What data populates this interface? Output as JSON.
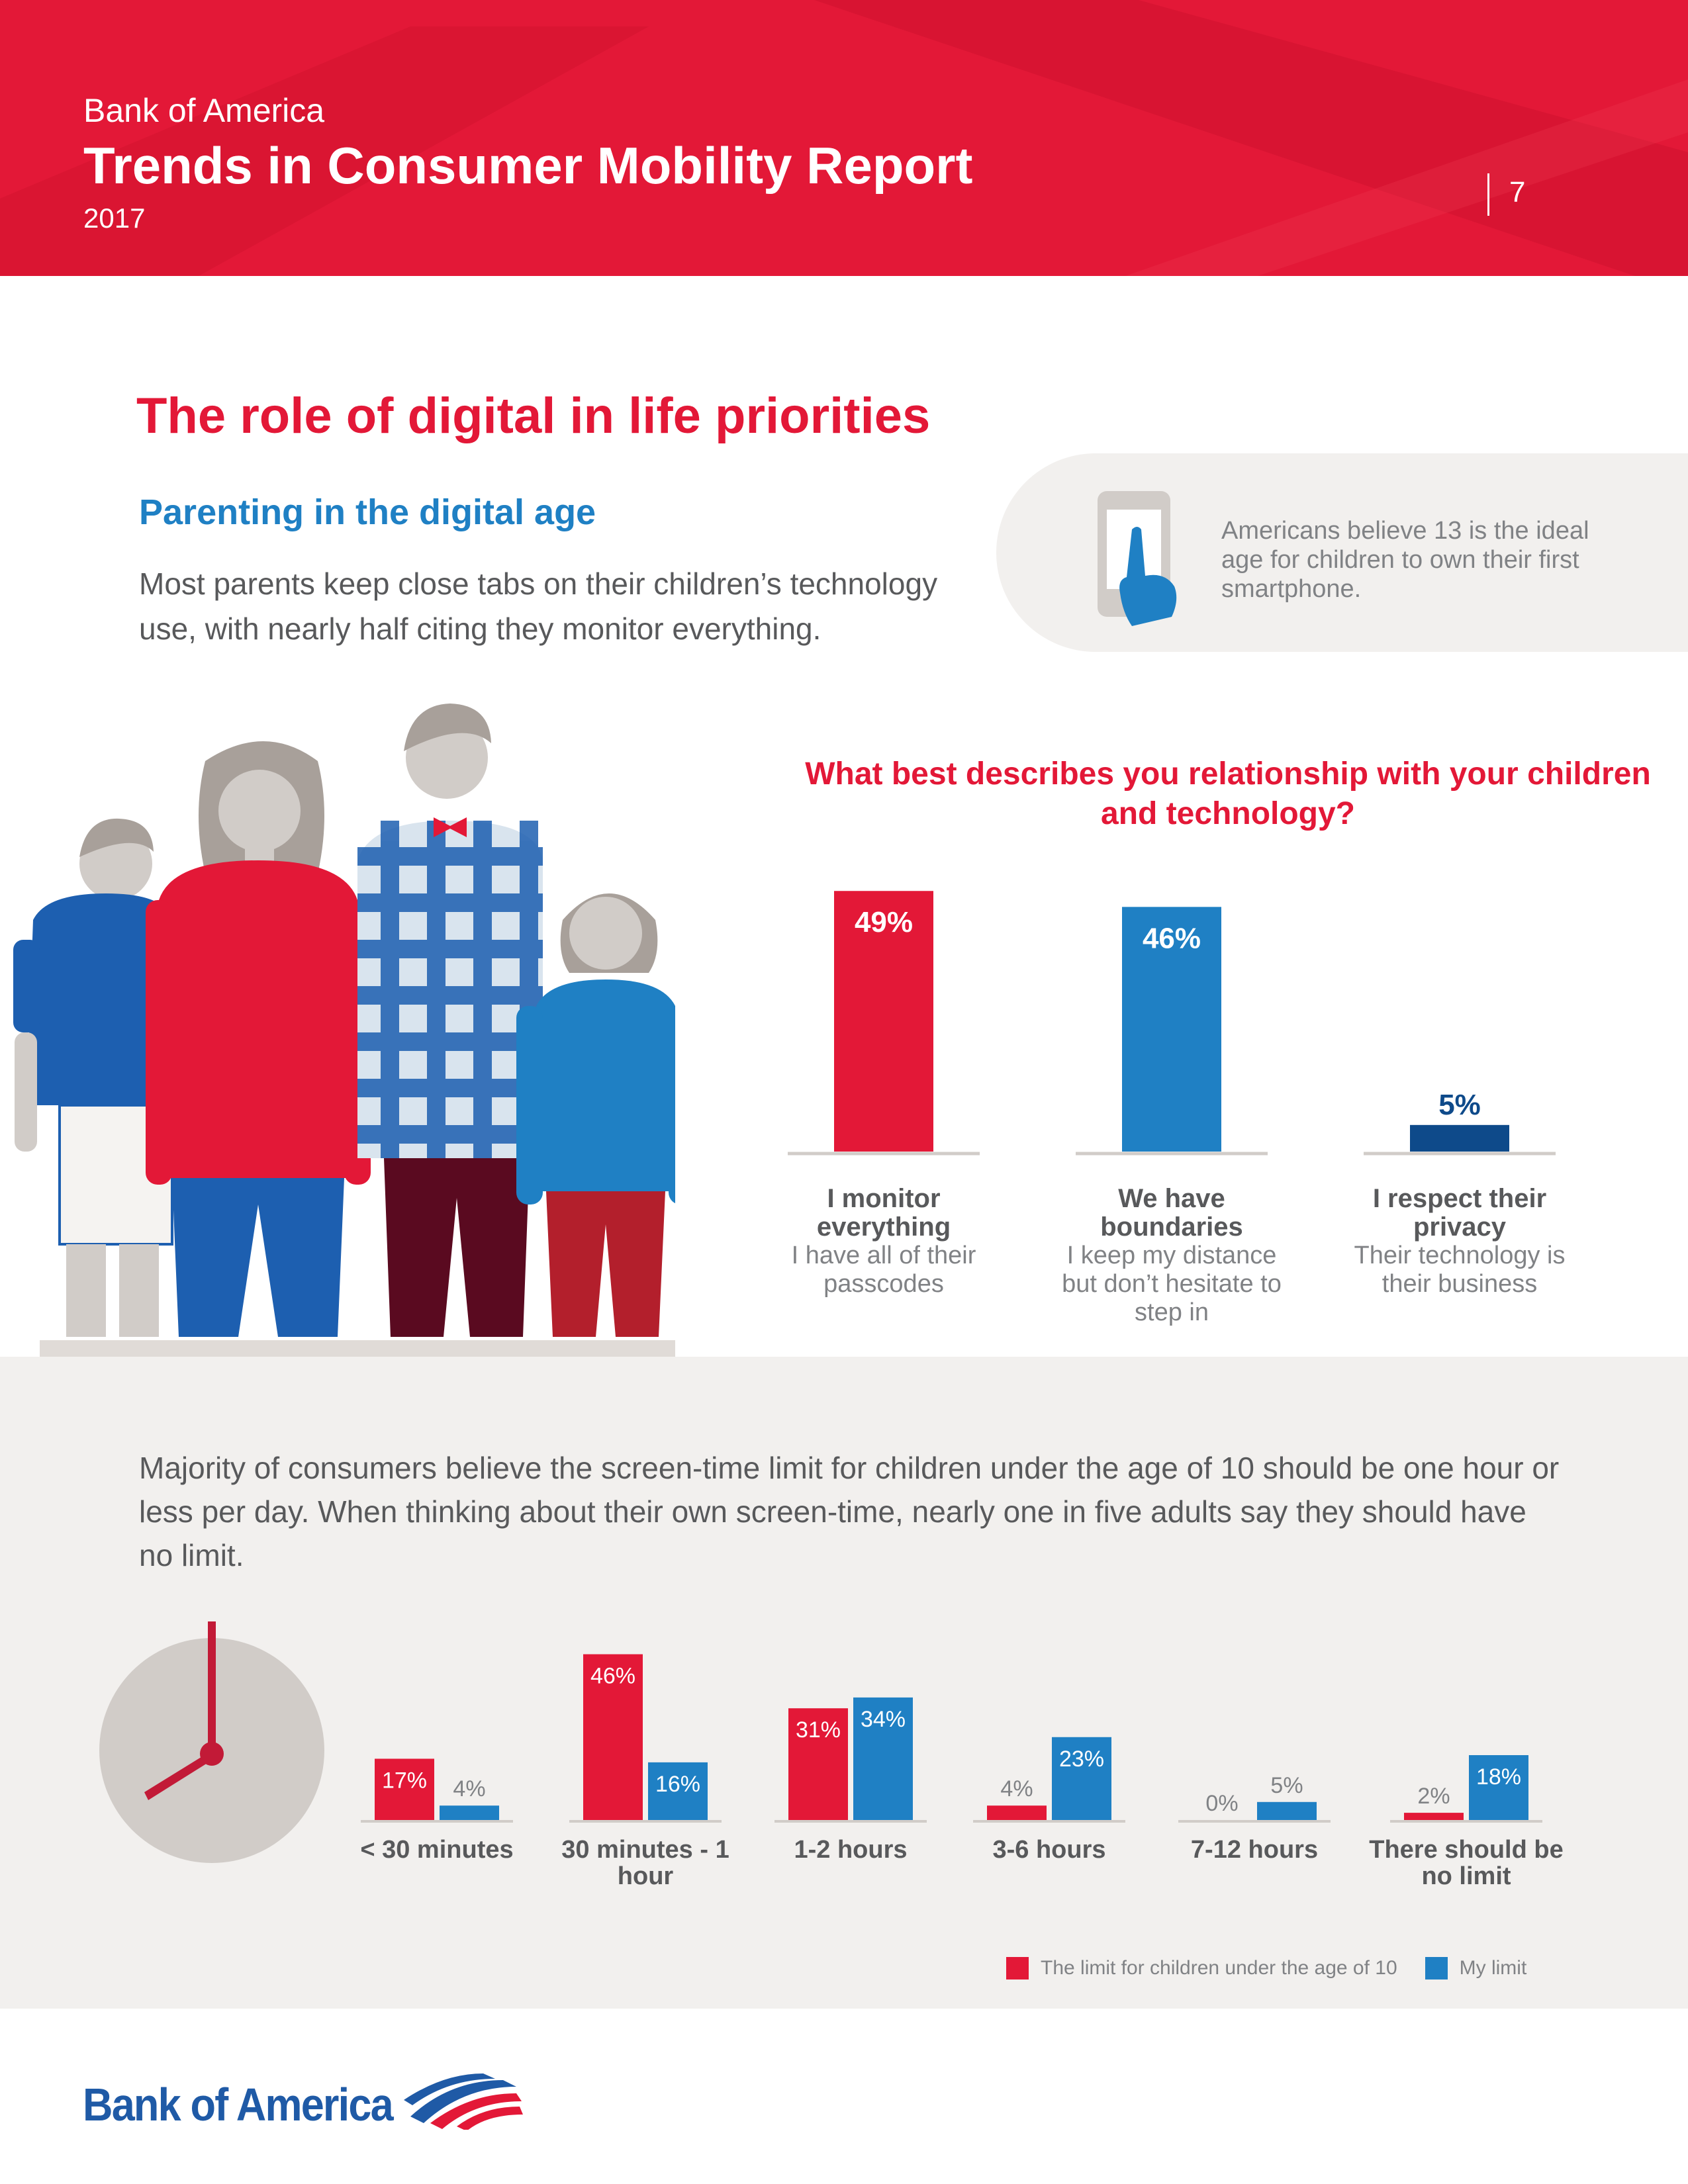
{
  "header": {
    "brand": "Bank of America",
    "title": "Trends in Consumer Mobility Report",
    "year": "2017",
    "page_number": "7"
  },
  "section": {
    "title": "The role of digital in life priorities",
    "subtitle": "Parenting in the digital age",
    "intro": "Most parents keep close tabs on their children’s technology use, with nearly half citing they monitor everything."
  },
  "callout": {
    "text": "Americans believe 13 is the ideal age for children to own their first smartphone.",
    "icon": "smartphone-hand-icon"
  },
  "colors": {
    "red": "#e31837",
    "blue": "#1f80c4",
    "dark_blue": "#0e4a8a",
    "grey_text": "#58595b",
    "panel_grey": "#f2f0ee"
  },
  "bottom": {
    "text": "Majority of consumers believe the screen-time limit for children under the age of 10 should be one hour or less per day. When thinking about their own screen-time, nearly one in five adults say they should have no limit."
  },
  "footer": {
    "logo": "Bank of America"
  },
  "chart_data": [
    {
      "type": "bar",
      "title": "What best describes you relationship with your children and technology?",
      "categories": [
        {
          "title": "I monitor everything",
          "description": "I have all of their passcodes"
        },
        {
          "title": "We have boundaries",
          "description": "I keep my distance but don’t hesitate to step in"
        },
        {
          "title": "I respect their privacy",
          "description": "Their technology is their business"
        }
      ],
      "values": [
        49,
        46,
        5
      ],
      "value_labels": [
        "49%",
        "46%",
        "5%"
      ],
      "colors": [
        "#e31837",
        "#1f80c4",
        "#0e4a8a"
      ],
      "ylim": [
        0,
        50
      ]
    },
    {
      "type": "bar",
      "categories": [
        "< 30 minutes",
        "30 minutes - 1 hour",
        "1-2 hours",
        "3-6 hours",
        "7-12 hours",
        "There should be no limit"
      ],
      "series": [
        {
          "name": "The limit for children under the age of 10",
          "color": "#e31837",
          "values": [
            17,
            46,
            31,
            4,
            0,
            2
          ],
          "labels": [
            "17%",
            "46%",
            "31%",
            "4%",
            "0%",
            "2%"
          ]
        },
        {
          "name": "My limit",
          "color": "#1f80c4",
          "values": [
            4,
            16,
            34,
            23,
            5,
            18
          ],
          "labels": [
            "4%",
            "16%",
            "34%",
            "23%",
            "5%",
            "18%"
          ]
        }
      ],
      "ylim": [
        0,
        50
      ],
      "legend": "bottom-right"
    }
  ]
}
